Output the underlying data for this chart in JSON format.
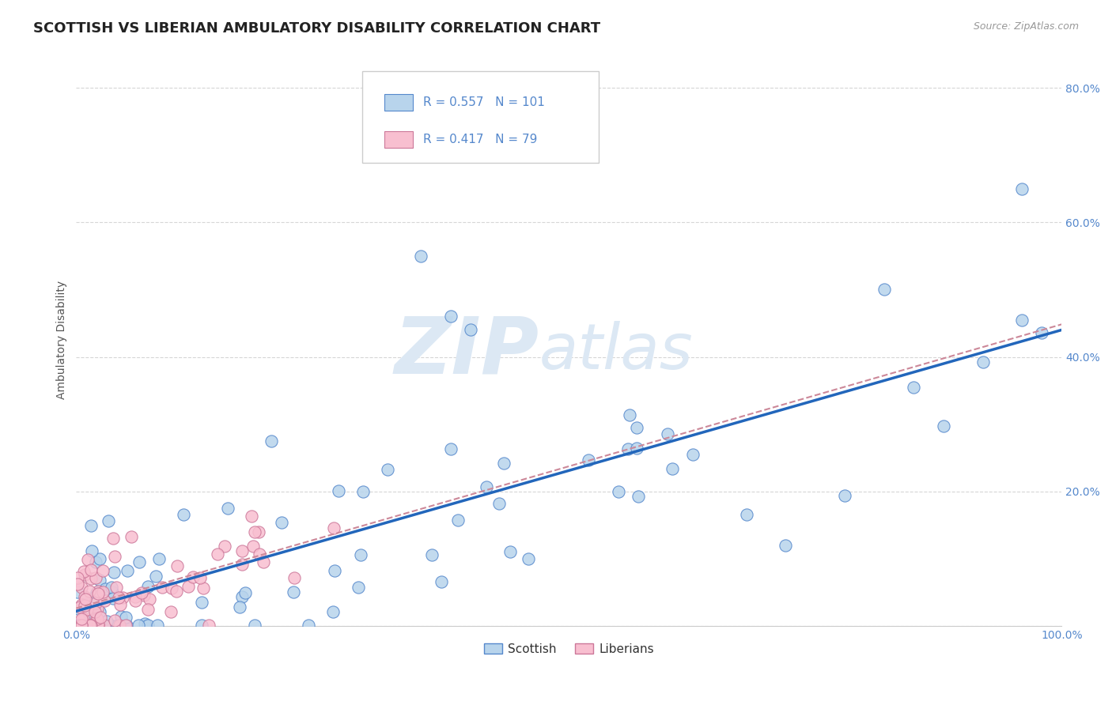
{
  "title": "SCOTTISH VS LIBERIAN AMBULATORY DISABILITY CORRELATION CHART",
  "source": "Source: ZipAtlas.com",
  "ylabel": "Ambulatory Disability",
  "xlim": [
    0.0,
    1.0
  ],
  "ylim": [
    0.0,
    0.85
  ],
  "scottish_color": "#b8d4ec",
  "scottish_edge_color": "#5588cc",
  "liberian_color": "#f8bfd0",
  "liberian_edge_color": "#cc7799",
  "scottish_line_color": "#2266bb",
  "liberian_line_color": "#cc8899",
  "R_scottish": 0.557,
  "N_scottish": 101,
  "R_liberian": 0.417,
  "N_liberian": 79,
  "background_color": "#ffffff",
  "grid_color": "#cccccc",
  "legend_label_scottish": "Scottish",
  "legend_label_liberian": "Liberians",
  "title_fontsize": 13,
  "axis_label_fontsize": 10,
  "tick_fontsize": 10,
  "tick_color": "#5588cc",
  "watermark_color": "#dce8f4"
}
